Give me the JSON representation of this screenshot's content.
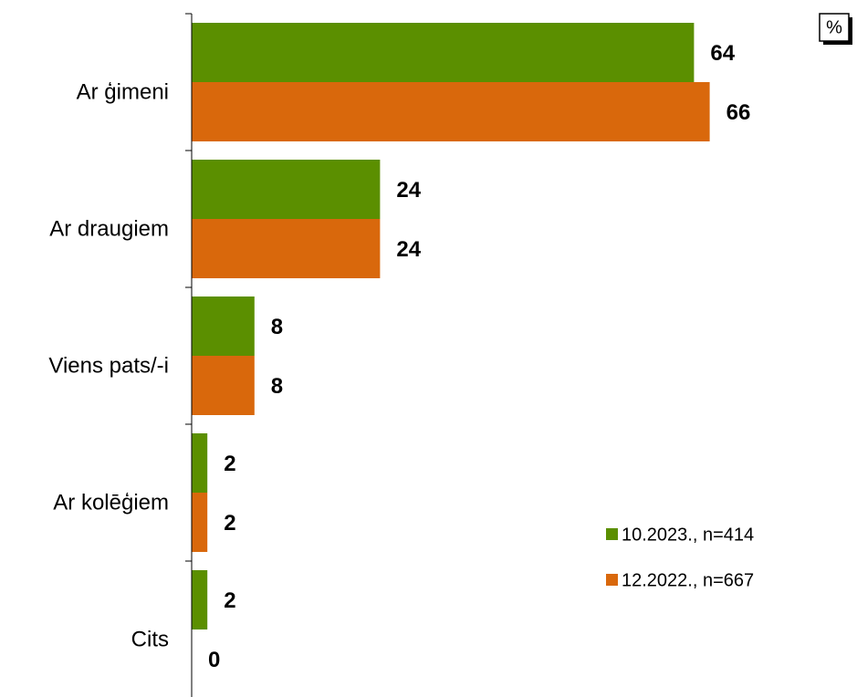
{
  "chart_data": {
    "type": "bar",
    "orientation": "horizontal",
    "unit_label": "%",
    "categories": [
      "Ar ģimeni",
      "Ar  draugiem",
      "Viens pats/-i",
      "Ar kolēģiem",
      "Cits"
    ],
    "series": [
      {
        "name": "10.2023., n=414",
        "color": "#5b8f00",
        "values": [
          64,
          24,
          8,
          2,
          2
        ]
      },
      {
        "name": "12.2022., n=667",
        "color": "#d9680c",
        "values": [
          66,
          24,
          8,
          2,
          0
        ]
      }
    ]
  }
}
